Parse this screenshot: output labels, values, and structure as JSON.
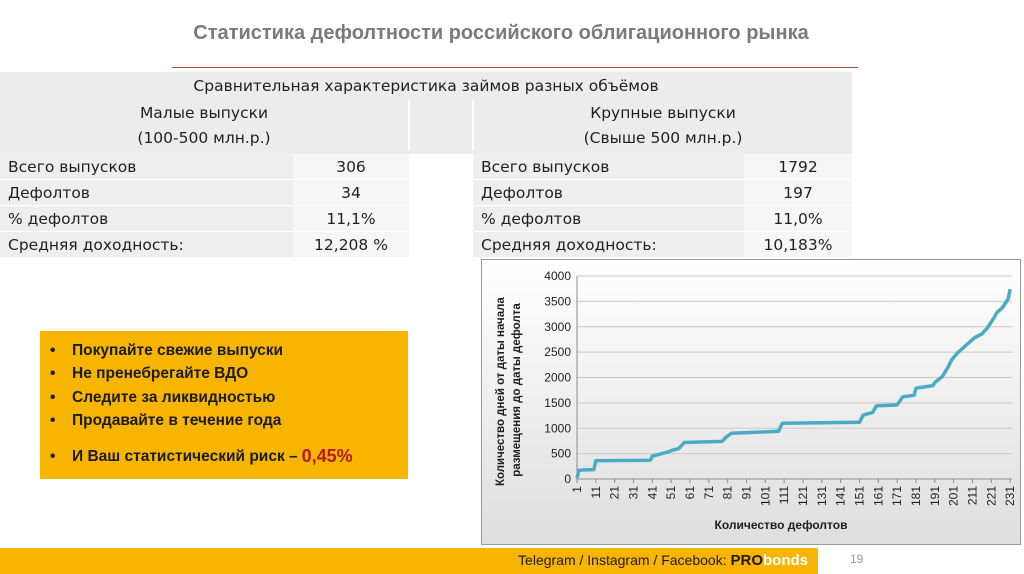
{
  "slide": {
    "title": "Статистика дефолтности российского облигационного рынка",
    "page_number": "19"
  },
  "comparison": {
    "header": "Сравнительная характеристика займов разных объёмов",
    "small": {
      "title": "Малые выпуски",
      "range": "(100-500 млн.р.)",
      "rows": [
        {
          "label": "Всего выпусков",
          "value": "306"
        },
        {
          "label": "Дефолтов",
          "value": "34"
        },
        {
          "label": "% дефолтов",
          "value": "11,1%"
        },
        {
          "label": "Средняя доходность:",
          "value": "12,208 %"
        }
      ]
    },
    "large": {
      "title": "Крупные выпуски",
      "range": "(Свыше 500 млн.р.)",
      "rows": [
        {
          "label": "Всего выпусков",
          "value": "1792"
        },
        {
          "label": "Дефолтов",
          "value": "197"
        },
        {
          "label": "% дефолтов",
          "value": "11,0%"
        },
        {
          "label": "Средняя доходность:",
          "value": "10,183%"
        }
      ]
    }
  },
  "tips": {
    "items": [
      "Покупайте свежие выпуски",
      "Не пренебрегайте ВДО",
      "Следите за ликвидностью",
      "Продавайте в течение года"
    ],
    "risk_label": "И Ваш статистический риск –",
    "risk_value": "0,45%",
    "bullet": "•",
    "background_color": "#f7b500"
  },
  "footer": {
    "social": "Telegram / Instagram / Facebook:",
    "brand_pro": "PRO",
    "brand_bonds": "bonds"
  },
  "chart_data": {
    "type": "line",
    "xlabel": "Количество дефолтов",
    "ylabel": "Количество дней от даты начала размещения до даты дефолта",
    "ylim": [
      0,
      4000
    ],
    "yticks": [
      0,
      500,
      1000,
      1500,
      2000,
      2500,
      3000,
      3500,
      4000
    ],
    "xticks": [
      1,
      11,
      21,
      31,
      41,
      51,
      61,
      71,
      81,
      91,
      101,
      111,
      121,
      131,
      141,
      151,
      161,
      171,
      181,
      191,
      201,
      211,
      221,
      231
    ],
    "grid": true,
    "line_color": "#4aabc6",
    "series": [
      {
        "x": [
          1,
          2,
          5,
          10,
          11,
          40,
          41,
          50,
          51,
          55,
          58,
          78,
          80,
          83,
          108,
          110,
          151,
          153,
          158,
          160,
          171,
          174,
          180,
          181,
          183,
          190,
          191,
          195,
          198,
          200,
          203,
          208,
          212,
          216,
          219,
          222,
          224,
          227,
          230,
          231
        ],
        "y": [
          20,
          170,
          180,
          185,
          360,
          370,
          450,
          540,
          560,
          600,
          720,
          740,
          820,
          900,
          940,
          1100,
          1120,
          1260,
          1310,
          1440,
          1460,
          1620,
          1650,
          1790,
          1800,
          1840,
          1900,
          2020,
          2200,
          2350,
          2480,
          2650,
          2780,
          2860,
          2980,
          3150,
          3280,
          3380,
          3550,
          3740
        ]
      }
    ]
  }
}
